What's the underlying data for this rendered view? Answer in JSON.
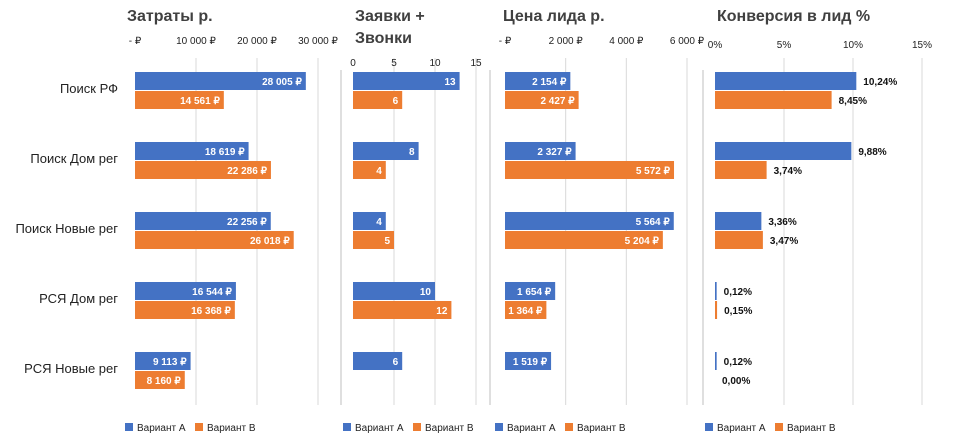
{
  "categories": [
    "Поиск РФ",
    "Поиск Дом рег",
    "Поиск Новые рег",
    "РСЯ Дом рег",
    "РСЯ Новые рег"
  ],
  "legend": {
    "a": "Вариант А",
    "b": "Вариант В"
  },
  "colors": {
    "a": "#4472c4",
    "b": "#ed7d31",
    "grid": "#d9d9d9",
    "divider": "#bfbfbf"
  },
  "chart_data": [
    {
      "type": "bar",
      "title": "Затраты р.",
      "ticks": [
        "- ₽",
        "10 000 ₽",
        "20 000 ₽",
        "30 000 ₽"
      ],
      "tick_values": [
        0,
        10000,
        20000,
        30000
      ],
      "xlim": [
        0,
        30000
      ],
      "categories": [
        "Поиск РФ",
        "Поиск Дом рег",
        "Поиск Новые рег",
        "РСЯ Дом рег",
        "РСЯ Новые рег"
      ],
      "series": [
        {
          "name": "Вариант А",
          "values": [
            28005,
            18619,
            22256,
            16544,
            9113
          ],
          "labels": [
            "28 005 ₽",
            "18 619 ₽",
            "22 256 ₽",
            "16 544 ₽",
            "9 113 ₽"
          ]
        },
        {
          "name": "Вариант В",
          "values": [
            14561,
            22286,
            26018,
            16368,
            8160
          ],
          "labels": [
            "14 561 ₽",
            "22 286 ₽",
            "26 018 ₽",
            "16 368 ₽",
            "8 160 ₽"
          ]
        }
      ],
      "legend_labels": [
        "Вариант А",
        "Вариант В"
      ]
    },
    {
      "type": "bar",
      "title": "Заявки + Звонки",
      "ticks": [
        "0",
        "5",
        "10",
        "15"
      ],
      "tick_values": [
        0,
        5,
        10,
        15
      ],
      "xlim": [
        0,
        15
      ],
      "categories": [
        "Поиск РФ",
        "Поиск Дом рег",
        "Поиск Новые рег",
        "РСЯ Дом рег",
        "РСЯ Новые рег"
      ],
      "series": [
        {
          "name": "Вариант А",
          "values": [
            13,
            8,
            4,
            10,
            6
          ],
          "labels": [
            "13",
            "8",
            "4",
            "10",
            "6"
          ]
        },
        {
          "name": "Вариант В",
          "values": [
            6,
            4,
            5,
            12,
            null
          ],
          "labels": [
            "6",
            "4",
            "5",
            "12",
            ""
          ]
        }
      ],
      "legend_labels": [
        "Вариант А",
        "Вариант В"
      ]
    },
    {
      "type": "bar",
      "title": "Цена лида р.",
      "ticks": [
        "- ₽",
        "2 000 ₽",
        "4 000 ₽",
        "6 000 ₽"
      ],
      "tick_values": [
        0,
        2000,
        4000,
        6000
      ],
      "xlim": [
        0,
        6000
      ],
      "categories": [
        "Поиск РФ",
        "Поиск Дом рег",
        "Поиск Новые рег",
        "РСЯ Дом рег",
        "РСЯ Новые рег"
      ],
      "series": [
        {
          "name": "Вариант А",
          "values": [
            2154,
            2327,
            5564,
            1654,
            1519
          ],
          "labels": [
            "2 154 ₽",
            "2 327 ₽",
            "5 564 ₽",
            "1 654 ₽",
            "1 519 ₽"
          ]
        },
        {
          "name": "Вариант В",
          "values": [
            2427,
            5572,
            5204,
            1364,
            null
          ],
          "labels": [
            "2 427 ₽",
            "5 572 ₽",
            "5 204 ₽",
            "1 364 ₽",
            ""
          ]
        }
      ],
      "legend_labels": [
        "Вариант А",
        "Вариант В"
      ]
    },
    {
      "type": "bar",
      "title": "Конверсия в лид %",
      "ticks": [
        "0%",
        "5%",
        "10%",
        "15%"
      ],
      "tick_values": [
        0,
        5,
        10,
        15
      ],
      "xlim": [
        0,
        15
      ],
      "categories": [
        "Поиск РФ",
        "Поиск Дом рег",
        "Поиск Новые рег",
        "РСЯ Дом рег",
        "РСЯ Новые рег"
      ],
      "series": [
        {
          "name": "Вариант А",
          "values": [
            10.24,
            9.88,
            3.36,
            0.12,
            0.12
          ],
          "labels": [
            "10,24%",
            "9,88%",
            "3,36%",
            "0,12%",
            "0,12%"
          ]
        },
        {
          "name": "Вариант В",
          "values": [
            8.45,
            3.74,
            3.47,
            0.15,
            0.0
          ],
          "labels": [
            "8,45%",
            "3,74%",
            "3,47%",
            "0,15%",
            "0,00%"
          ]
        }
      ],
      "legend_labels": [
        "Вариант А",
        "Вариант В"
      ]
    }
  ]
}
